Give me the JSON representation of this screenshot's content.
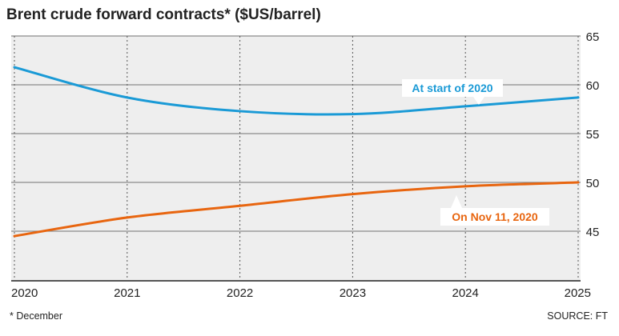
{
  "chart_data": {
    "type": "line",
    "title": "Brent crude forward contracts* ($US/barrel)",
    "footnote": "* December",
    "source": "SOURCE: FT",
    "xlabel": "",
    "ylabel": "",
    "x": [
      2020,
      2021,
      2022,
      2023,
      2024,
      2025
    ],
    "xlim": [
      2020,
      2025
    ],
    "ylim": [
      40,
      65
    ],
    "yticks": [
      45,
      50,
      55,
      60,
      65
    ],
    "grid": true,
    "series": [
      {
        "name": "At start of 2020",
        "color": "#1a9ad6",
        "values": [
          61.8,
          58.7,
          57.3,
          57.0,
          57.8,
          58.7
        ]
      },
      {
        "name": "On Nov 11, 2020",
        "color": "#e8650f",
        "values": [
          44.5,
          46.4,
          47.6,
          48.8,
          49.6,
          50.0
        ]
      }
    ]
  }
}
